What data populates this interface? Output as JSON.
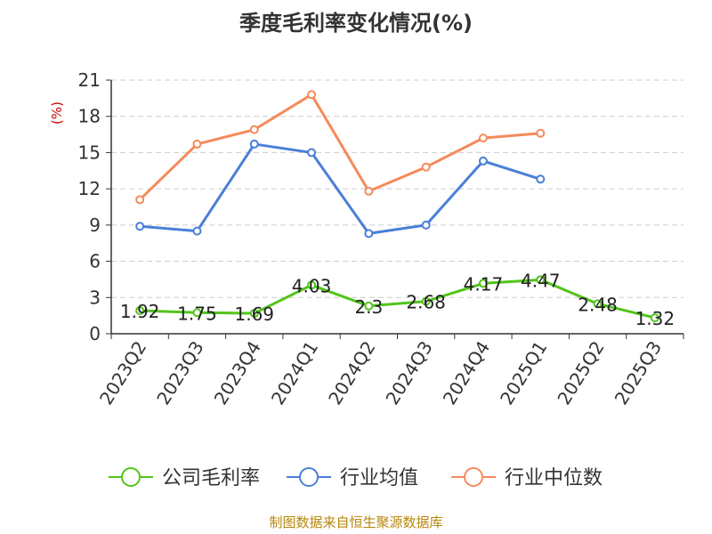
{
  "chart_data": {
    "type": "line",
    "title": "季度毛利率变化情况(%)",
    "ylabel": "(%)",
    "xlabel": "",
    "ylim": [
      0,
      21
    ],
    "yticks": [
      0,
      3,
      6,
      9,
      12,
      15,
      18,
      21
    ],
    "grid": true,
    "legend_position": "bottom",
    "categories": [
      "2023Q2",
      "2023Q3",
      "2023Q4",
      "2024Q1",
      "2024Q2",
      "2024Q3",
      "2024Q4",
      "2025Q1",
      "2025Q2",
      "2025Q3"
    ],
    "series": [
      {
        "name": "公司毛利率",
        "color": "#52c41a",
        "values": [
          1.92,
          1.75,
          1.69,
          4.03,
          2.3,
          2.68,
          4.17,
          4.47,
          2.48,
          1.32
        ],
        "labels": [
          "1.92",
          "1.75",
          "1.69",
          "4.03",
          "2.3",
          "2.68",
          "4.17",
          "4.47",
          "2.48",
          "1.32"
        ]
      },
      {
        "name": "行业均值",
        "color": "#4a7fd8",
        "values": [
          8.9,
          8.5,
          15.7,
          15.0,
          8.3,
          9.0,
          14.3,
          12.8,
          null,
          null
        ]
      },
      {
        "name": "行业中位数",
        "color": "#f58a5a",
        "values": [
          11.1,
          15.7,
          16.9,
          19.8,
          11.8,
          13.8,
          16.2,
          16.6,
          null,
          null
        ]
      }
    ]
  },
  "footer": {
    "source": "制图数据来自恒生聚源数据库"
  }
}
